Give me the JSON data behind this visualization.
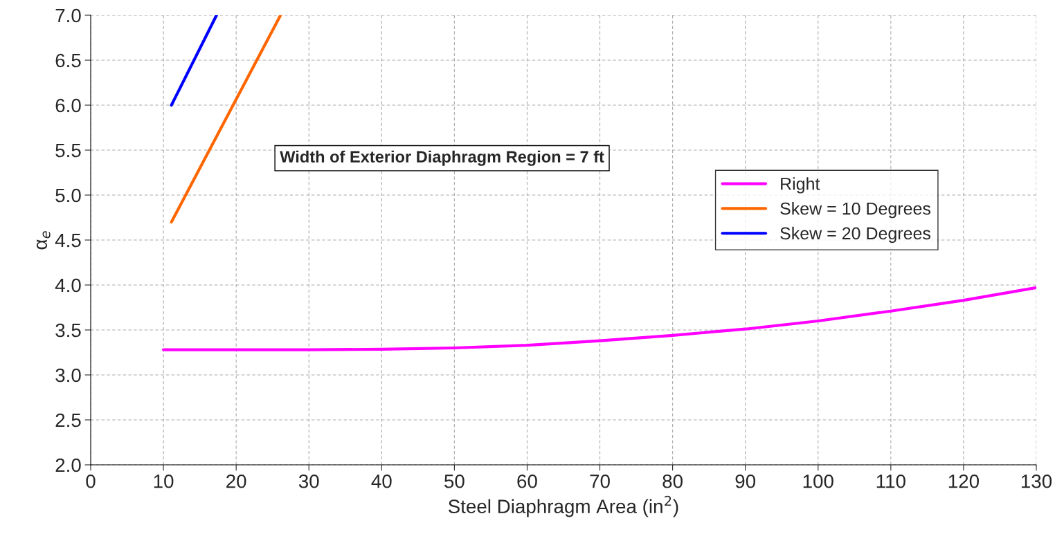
{
  "chart_data": {
    "type": "line",
    "xlabel": "Steel Diaphragm Area (in$^{2}$)",
    "ylabel": "α$_{e}$",
    "annotations": [
      "Width of Exterior Diaphragm Region = 7 ft"
    ],
    "series": [
      {
        "name": "Right",
        "color": "#ff00ff",
        "x": [
          10,
          20,
          30,
          40,
          50,
          60,
          70,
          80,
          90,
          100,
          110,
          120,
          130
        ],
        "values": [
          3.28,
          3.28,
          3.28,
          3.285,
          3.3,
          3.33,
          3.38,
          3.44,
          3.51,
          3.6,
          3.71,
          3.83,
          3.97
        ]
      },
      {
        "name": "Skew = 10 Degrees",
        "color": "#ff6600",
        "x": [
          11.1,
          26.1
        ],
        "values": [
          4.7,
          7.0
        ]
      },
      {
        "name": "Skew = 20 Degrees",
        "color": "#0000ff",
        "x": [
          11.1,
          17.3
        ],
        "values": [
          6.0,
          7.0
        ]
      }
    ],
    "xlim": [
      0,
      130
    ],
    "xticks": [
      0,
      10,
      20,
      30,
      40,
      50,
      60,
      70,
      80,
      90,
      100,
      110,
      120,
      130
    ],
    "ylim": [
      2,
      7
    ],
    "yticks": [
      {
        "value": 2,
        "label": "2.0"
      },
      {
        "value": 2.5,
        "label": "2.5"
      },
      {
        "value": 3,
        "label": "3.0"
      },
      {
        "value": 3.5,
        "label": "3.5"
      },
      {
        "value": 4,
        "label": "4.0"
      },
      {
        "value": 4.5,
        "label": "4.5"
      },
      {
        "value": 5,
        "label": "5.0"
      },
      {
        "value": 5.5,
        "label": "5.5"
      },
      {
        "value": 6,
        "label": "6.0"
      },
      {
        "value": 6.5,
        "label": "6.5"
      },
      {
        "value": 7,
        "label": "7.0"
      }
    ],
    "grid": true,
    "legend": "top right",
    "line_style": "solid",
    "marker": "none"
  }
}
